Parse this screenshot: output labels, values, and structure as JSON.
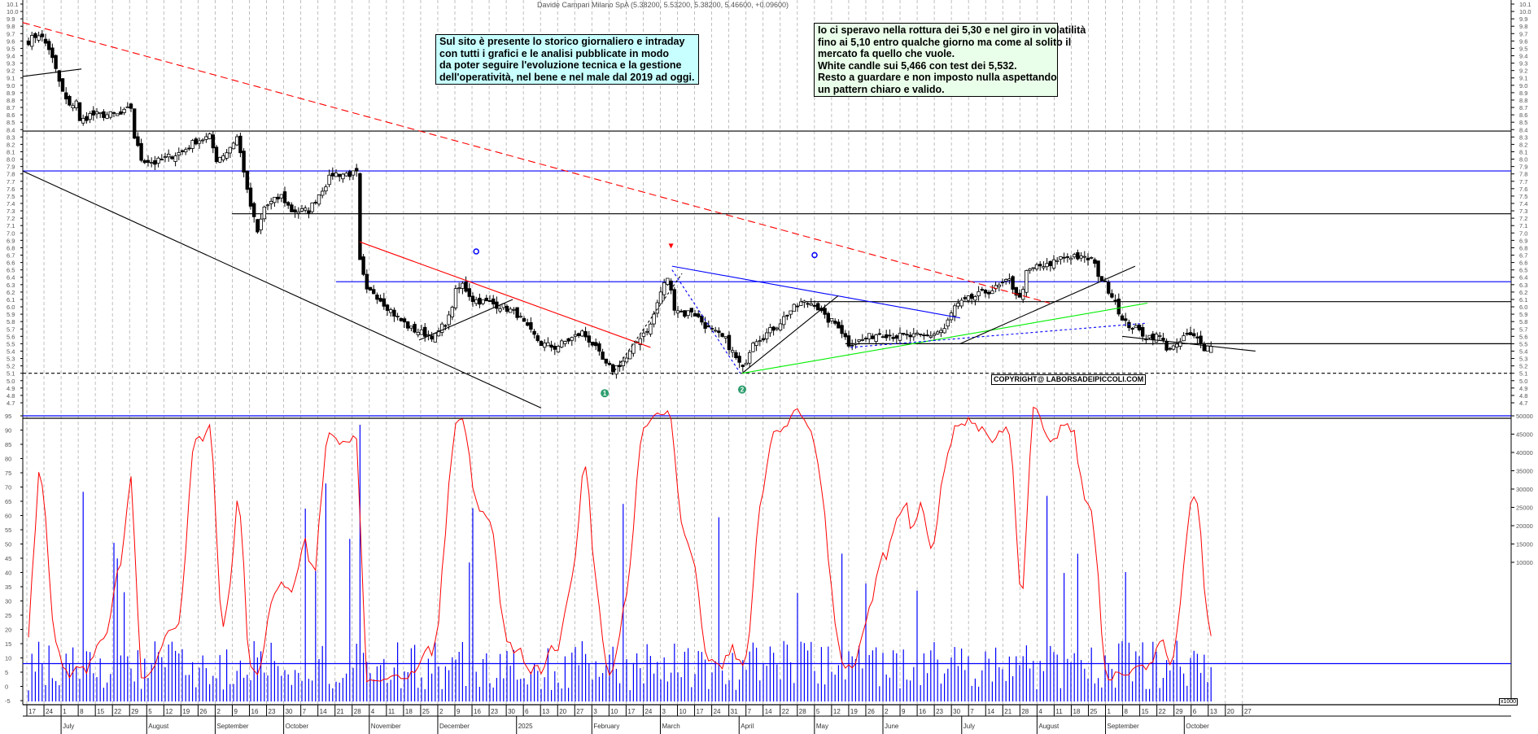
{
  "title": "Davide Campari Milano SpA (5.38200, 5.53200, 5.38200, 5.46600, +0.09600)",
  "note_site": {
    "lines": [
      "Sul sito è presente lo storico giornaliero e intraday",
      "con tutti i grafici e le analisi pubblicate in modo",
      "da poter seguire l'evoluzione tecnica e la gestione",
      "dell'operatività, nel bene e nel male dal 2019 ad oggi."
    ]
  },
  "note_analysis": {
    "lines": [
      "Io ci speravo nella rottura dei 5,30 e nel giro in volatilità",
      "fino ai 5,10 entro qualche giorno ma come al solito il",
      "mercato fa quello che vuole.",
      "White candle sui 5,466 con test dei 5,532.",
      "Resto a guardare e non imposto nulla aspettando",
      "un pattern chiaro e valido."
    ]
  },
  "copyright": "COPYRIGHT@ LABORSADEIPICCOLI.COM",
  "volume_unit": "x1000",
  "colors": {
    "candle_up": "#ffffff",
    "candle_down": "#000000",
    "oscillator": "#ff0000",
    "volume": "#0000ff",
    "grid": "#b0b0b0",
    "marker_green": "#2e9e6e",
    "marker_blue": "#0000ff",
    "marker_red": "#ff0000"
  },
  "chart_data": {
    "type": "candlestick",
    "price_axis": {
      "min": 4.7,
      "max": 10.1,
      "step": 0.1
    },
    "oscillator_axis": {
      "min": -5,
      "max": 95,
      "step": 5
    },
    "volume_axis_labels": [
      "50000",
      "45000",
      "40000",
      "35000",
      "30000",
      "25000",
      "20000",
      "15000",
      "10000"
    ],
    "week_labels": [
      "17",
      "24",
      "1",
      "8",
      "15",
      "22",
      "29",
      "5",
      "12",
      "19",
      "26",
      "2",
      "9",
      "16",
      "23",
      "30",
      "7",
      "14",
      "21",
      "28",
      "4",
      "11",
      "18",
      "25",
      "2",
      "9",
      "16",
      "23",
      "30",
      "6",
      "13",
      "20",
      "27",
      "3",
      "10",
      "17",
      "24",
      "3",
      "10",
      "17",
      "24",
      "31",
      "7",
      "14",
      "22",
      "28",
      "5",
      "12",
      "19",
      "26",
      "2",
      "9",
      "16",
      "23",
      "30",
      "7",
      "14",
      "21",
      "28",
      "4",
      "11",
      "18",
      "25",
      "1",
      "8",
      "15",
      "22",
      "29",
      "6",
      "13",
      "20",
      "27"
    ],
    "month_labels": [
      {
        "label": "July",
        "week": 2
      },
      {
        "label": "August",
        "week": 7
      },
      {
        "label": "September",
        "week": 11
      },
      {
        "label": "October",
        "week": 15
      },
      {
        "label": "November",
        "week": 20
      },
      {
        "label": "December",
        "week": 24
      },
      {
        "label": "2025",
        "week": 28.6
      },
      {
        "label": "February",
        "week": 33
      },
      {
        "label": "March",
        "week": 37
      },
      {
        "label": "April",
        "week": 41.6
      },
      {
        "label": "May",
        "week": 46
      },
      {
        "label": "June",
        "week": 50
      },
      {
        "label": "July",
        "week": 54.6
      },
      {
        "label": "August",
        "week": 59
      },
      {
        "label": "September",
        "week": 63
      },
      {
        "label": "October",
        "week": 67.6
      }
    ],
    "close_keyframes": [
      [
        0,
        9.6
      ],
      [
        3,
        9.7
      ],
      [
        6,
        9.5
      ],
      [
        8,
        9.2
      ],
      [
        10,
        8.9
      ],
      [
        12,
        8.7
      ],
      [
        14,
        8.8
      ],
      [
        15,
        8.5
      ],
      [
        18,
        8.6
      ],
      [
        23,
        8.6
      ],
      [
        27,
        8.6
      ],
      [
        30,
        8.7
      ],
      [
        31,
        8.3
      ],
      [
        33,
        8.0
      ],
      [
        37,
        7.95
      ],
      [
        42,
        8.05
      ],
      [
        45,
        8.1
      ],
      [
        49,
        8.25
      ],
      [
        53,
        8.3
      ],
      [
        55,
        8.0
      ],
      [
        58,
        8.1
      ],
      [
        61,
        8.3
      ],
      [
        63,
        7.85
      ],
      [
        64,
        7.55
      ],
      [
        67,
        7.0
      ],
      [
        69,
        7.35
      ],
      [
        74,
        7.5
      ],
      [
        77,
        7.3
      ],
      [
        82,
        7.3
      ],
      [
        86,
        7.6
      ],
      [
        89,
        7.8
      ],
      [
        96,
        7.8
      ],
      [
        97,
        6.6
      ],
      [
        99,
        6.2
      ],
      [
        101,
        6.2
      ],
      [
        105,
        6.0
      ],
      [
        108,
        5.85
      ],
      [
        112,
        5.7
      ],
      [
        115,
        5.65
      ],
      [
        119,
        5.6
      ],
      [
        123,
        5.85
      ],
      [
        125,
        6.2
      ],
      [
        127,
        6.3
      ],
      [
        130,
        6.1
      ],
      [
        135,
        6.05
      ],
      [
        139,
        6.0
      ],
      [
        143,
        5.9
      ],
      [
        146,
        5.7
      ],
      [
        150,
        5.5
      ],
      [
        154,
        5.45
      ],
      [
        158,
        5.55
      ],
      [
        162,
        5.65
      ],
      [
        165,
        5.5
      ],
      [
        169,
        5.2
      ],
      [
        171,
        5.15
      ],
      [
        175,
        5.3
      ],
      [
        179,
        5.6
      ],
      [
        182,
        5.75
      ],
      [
        185,
        6.2
      ],
      [
        187,
        6.4
      ],
      [
        189,
        6.0
      ],
      [
        192,
        5.9
      ],
      [
        194,
        5.95
      ],
      [
        199,
        5.7
      ],
      [
        204,
        5.55
      ],
      [
        207,
        5.3
      ],
      [
        209,
        5.15
      ],
      [
        212,
        5.55
      ],
      [
        215,
        5.6
      ],
      [
        219,
        5.75
      ],
      [
        223,
        5.95
      ],
      [
        226,
        6.05
      ],
      [
        230,
        6.05
      ],
      [
        233,
        5.85
      ],
      [
        237,
        5.75
      ],
      [
        240,
        5.5
      ],
      [
        244,
        5.55
      ],
      [
        249,
        5.65
      ],
      [
        254,
        5.6
      ],
      [
        258,
        5.6
      ],
      [
        263,
        5.6
      ],
      [
        268,
        5.7
      ],
      [
        271,
        6.0
      ],
      [
        275,
        6.1
      ],
      [
        280,
        6.2
      ],
      [
        283,
        6.25
      ],
      [
        287,
        6.35
      ],
      [
        290,
        6.1
      ],
      [
        292,
        6.45
      ],
      [
        295,
        6.55
      ],
      [
        299,
        6.55
      ],
      [
        301,
        6.65
      ],
      [
        306,
        6.7
      ],
      [
        308,
        6.65
      ],
      [
        311,
        6.65
      ],
      [
        313,
        6.45
      ],
      [
        315,
        6.3
      ],
      [
        318,
        6.1
      ],
      [
        320,
        5.8
      ],
      [
        324,
        5.7
      ],
      [
        327,
        5.6
      ],
      [
        331,
        5.6
      ],
      [
        333,
        5.45
      ],
      [
        336,
        5.45
      ],
      [
        338,
        5.6
      ],
      [
        340,
        5.6
      ],
      [
        343,
        5.55
      ],
      [
        344,
        5.45
      ],
      [
        346,
        5.466
      ]
    ],
    "last_candle": {
      "open": 5.382,
      "high": 5.532,
      "low": 5.382,
      "close": 5.466,
      "change": 0.096
    },
    "horizontal_levels": [
      {
        "price": 8.38,
        "color": "#000000",
        "from_day": -2,
        "dash": false
      },
      {
        "price": 7.84,
        "color": "#0000ff",
        "from_day": -2,
        "dash": false
      },
      {
        "price": 7.26,
        "color": "#000000",
        "from_day": 59.5,
        "dash": false
      },
      {
        "price": 6.34,
        "color": "#0000ff",
        "from_day": 90,
        "dash": false
      },
      {
        "price": 6.07,
        "color": "#000000",
        "from_day": 226,
        "dash": false
      },
      {
        "price": 5.5,
        "color": "#000000",
        "from_day": 239,
        "dash": false
      },
      {
        "price": 5.1,
        "color": "#000000",
        "from_day": -2,
        "dash": true
      }
    ],
    "trendlines": [
      {
        "from": [
          -1.7,
          9.12
        ],
        "to": [
          15.5,
          9.22
        ],
        "color": "#000000",
        "dash": false
      },
      {
        "from": [
          -1.7,
          9.85
        ],
        "to": [
          298.8,
          6.05
        ],
        "color": "#ff0000",
        "dash": true
      },
      {
        "from": [
          -1.7,
          7.84
        ],
        "to": [
          150,
          4.63
        ],
        "color": "#000000",
        "dash": false
      },
      {
        "from": [
          96.9,
          6.88
        ],
        "to": [
          182,
          5.45
        ],
        "color": "#ff0000",
        "dash": false
      },
      {
        "from": [
          114.3,
          5.55
        ],
        "to": [
          141.7,
          6.1
        ],
        "color": "#000000",
        "dash": false
      },
      {
        "from": [
          170.7,
          5.08
        ],
        "to": [
          191.2,
          6.45
        ],
        "color": "#000000",
        "dash": true
      },
      {
        "from": [
          188.3,
          6.5
        ],
        "to": [
          208.3,
          5.1
        ],
        "color": "#0000ff",
        "dash": true
      },
      {
        "from": [
          188.3,
          6.55
        ],
        "to": [
          272.6,
          5.85
        ],
        "color": "#0000ff",
        "dash": false
      },
      {
        "from": [
          208.8,
          5.1
        ],
        "to": [
          236.9,
          6.15
        ],
        "color": "#000000",
        "dash": false
      },
      {
        "from": [
          208.8,
          5.1
        ],
        "to": [
          327.4,
          6.05
        ],
        "color": "#00ee00",
        "dash": false
      },
      {
        "from": [
          240.5,
          5.45
        ],
        "to": [
          327.4,
          5.78
        ],
        "color": "#0000ff",
        "dash": true
      },
      {
        "from": [
          272.6,
          5.5
        ],
        "to": [
          323.8,
          6.55
        ],
        "color": "#000000",
        "dash": false
      },
      {
        "from": [
          320,
          5.6
        ],
        "to": [
          359,
          5.4
        ],
        "color": "#000000",
        "dash": false
      }
    ],
    "markers": [
      {
        "type": "circle",
        "label": "",
        "day": 131,
        "price": 6.75,
        "color": "#0000ff"
      },
      {
        "type": "circle",
        "label": "",
        "day": 230,
        "price": 6.7,
        "color": "#0000ff"
      },
      {
        "type": "arrow",
        "label": "",
        "day": 188,
        "price": 6.79,
        "color": "#ff0000"
      },
      {
        "type": "circle",
        "label": "1",
        "day": 168.6,
        "price": 4.83,
        "color": "#2e9e6e"
      },
      {
        "type": "circle",
        "label": "2",
        "day": 208.8,
        "price": 4.88,
        "color": "#2e9e6e"
      }
    ],
    "oscillator_levels": [
      95,
      8
    ]
  }
}
